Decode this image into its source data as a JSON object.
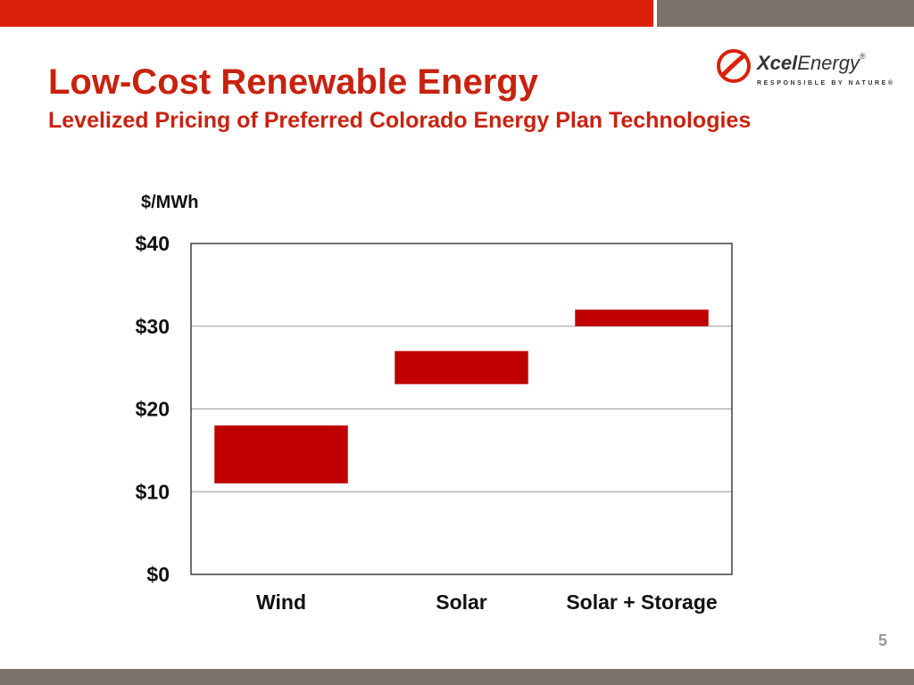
{
  "slide": {
    "title": "Low-Cost Renewable Energy",
    "subtitle": "Levelized Pricing of Preferred Colorado Energy Plan Technologies",
    "page_number": "5",
    "accent_color": "#d9210b",
    "secondary_color": "#7d736a"
  },
  "logo": {
    "word_bold": "Xcel",
    "word_regular": "Energy",
    "registered": "®",
    "tagline": "RESPONSIBLE BY NATURE®",
    "icon": "xcel-swoosh-icon"
  },
  "chart_data": {
    "type": "bar",
    "subtype": "floating-range",
    "unit_label": "$/MWh",
    "categories": [
      "Wind",
      "Solar",
      "Solar + Storage"
    ],
    "series": [
      {
        "ranges": [
          [
            11,
            18
          ],
          [
            23,
            27
          ],
          [
            30,
            32
          ]
        ],
        "color": "#c00000"
      }
    ],
    "ylim": [
      0,
      40
    ],
    "yticks": [
      0,
      10,
      20,
      30,
      40
    ],
    "ytick_labels": [
      "$0",
      "$10",
      "$20",
      "$30",
      "$40"
    ],
    "grid": true,
    "legend": "none"
  }
}
